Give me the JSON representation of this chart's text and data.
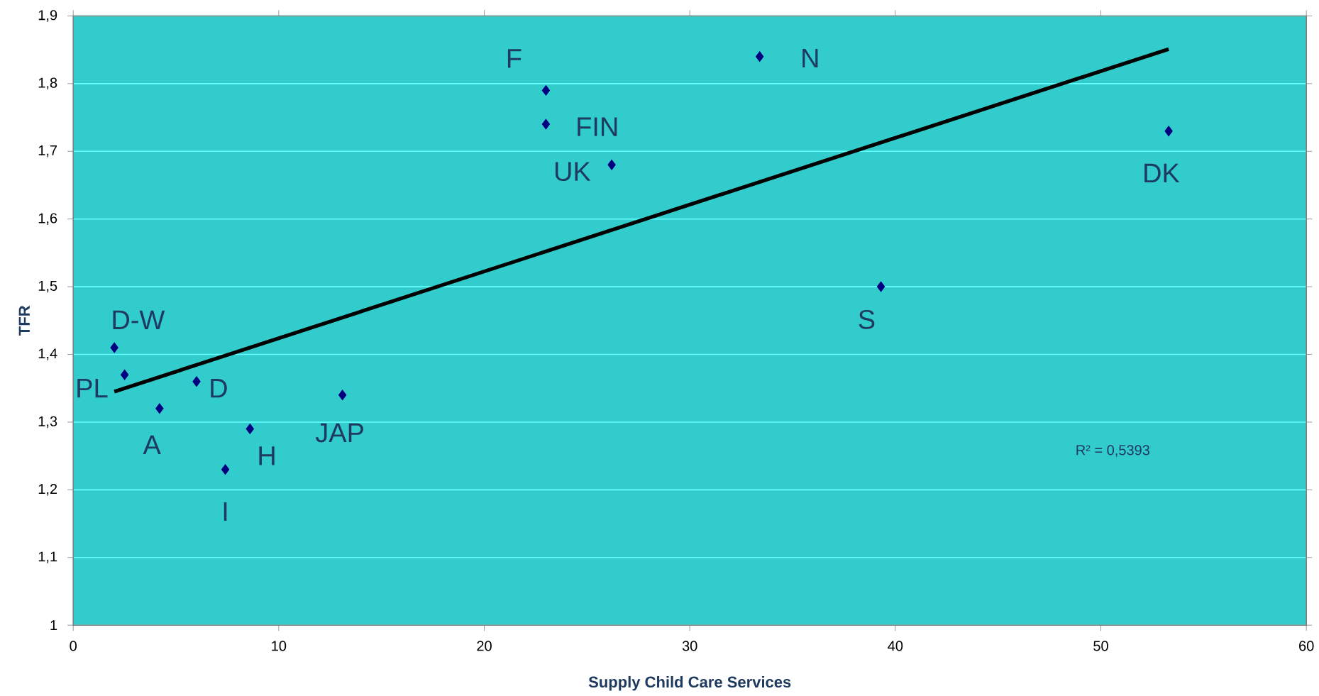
{
  "chart_data": {
    "type": "scatter",
    "xlabel": "Supply Child Care Services",
    "ylabel": "TFR",
    "xlim": [
      0,
      60
    ],
    "xticks": [
      0,
      10,
      20,
      30,
      40,
      50,
      60
    ],
    "ylim": [
      1,
      1.9
    ],
    "yticks": [
      1,
      {
        "value": 1.1,
        "label": "1,1"
      },
      {
        "value": 1.2,
        "label": "1,2"
      },
      {
        "value": 1.3,
        "label": "1,3"
      },
      {
        "value": 1.4,
        "label": "1,4"
      },
      {
        "value": 1.5,
        "label": "1,5"
      },
      {
        "value": 1.6,
        "label": "1,6"
      },
      {
        "value": 1.7,
        "label": "1,7"
      },
      {
        "value": 1.8,
        "label": "1,8"
      },
      {
        "value": 1.9,
        "label": "1,9"
      }
    ],
    "grid": "y",
    "marker": "diamond",
    "series": [
      {
        "color": "#000080",
        "x": [
          2.0,
          2.5,
          4.2,
          6.0,
          8.6,
          7.4,
          13.1,
          23.0,
          23.0,
          26.2,
          33.4,
          39.3,
          53.3
        ],
        "values": [
          1.41,
          1.37,
          1.32,
          1.36,
          1.29,
          1.23,
          1.34,
          1.79,
          1.74,
          1.68,
          1.84,
          1.5,
          1.73
        ]
      },
      {
        "type": "line",
        "color": "#000000",
        "marker": "none",
        "x": [
          2.0,
          53.3
        ],
        "values": [
          1.345,
          1.851
        ]
      }
    ],
    "annotations": [
      {
        "text": "D-W",
        "x": 2.0,
        "y": 1.41
      },
      {
        "text": "PL",
        "x": 2.5,
        "y": 1.37
      },
      {
        "text": "A",
        "x": 4.2,
        "y": 1.32
      },
      {
        "text": "D",
        "x": 6.0,
        "y": 1.36
      },
      {
        "text": "H",
        "x": 8.6,
        "y": 1.29
      },
      {
        "text": "I",
        "x": 7.4,
        "y": 1.23
      },
      {
        "text": "JAP",
        "x": 13.1,
        "y": 1.34
      },
      {
        "text": "F",
        "x": 23.0,
        "y": 1.79
      },
      {
        "text": "FIN",
        "x": 23.0,
        "y": 1.74
      },
      {
        "text": "UK",
        "x": 26.2,
        "y": 1.68
      },
      {
        "text": "N",
        "x": 33.4,
        "y": 1.84
      },
      {
        "text": "S",
        "x": 39.3,
        "y": 1.5
      },
      {
        "text": "DK",
        "x": 53.3,
        "y": 1.73
      },
      "R² = 0,5393"
    ]
  }
}
